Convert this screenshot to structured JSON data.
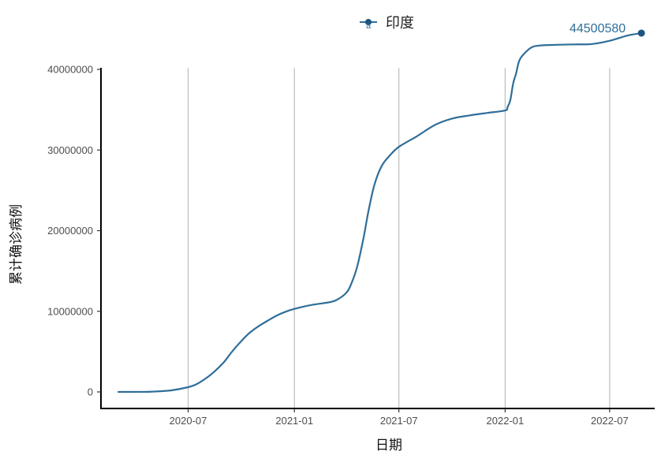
{
  "legend": {
    "series_name": "印度",
    "key_letter": "a"
  },
  "colors": {
    "series": "#2f6e99",
    "marker": "#1b5680",
    "grid": "#bdbdbd",
    "axis": "#000000"
  },
  "chart_data": {
    "type": "line",
    "xlabel": "日期",
    "ylabel": "累计确诊病例",
    "x_ticks": [
      "2020-07",
      "2021-01",
      "2021-07",
      "2022-01",
      "2022-07"
    ],
    "y_ticks": [
      "0",
      "10000000",
      "20000000",
      "30000000",
      "40000000"
    ],
    "ylim": [
      0,
      45000000
    ],
    "xlim": [
      "2020-02-01",
      "2022-09-17"
    ],
    "grid": "vertical-major",
    "legend_position": "top",
    "series": [
      {
        "name": "印度",
        "x": [
          "2020-03-01",
          "2020-04-01",
          "2020-05-01",
          "2020-06-01",
          "2020-07-01",
          "2020-07-15",
          "2020-08-01",
          "2020-08-15",
          "2020-09-01",
          "2020-09-15",
          "2020-10-01",
          "2020-10-15",
          "2020-11-01",
          "2020-11-15",
          "2020-12-01",
          "2020-12-15",
          "2021-01-01",
          "2021-02-01",
          "2021-03-01",
          "2021-03-15",
          "2021-04-01",
          "2021-04-10",
          "2021-04-20",
          "2021-05-01",
          "2021-05-10",
          "2021-05-20",
          "2021-06-01",
          "2021-06-15",
          "2021-07-01",
          "2021-08-01",
          "2021-09-01",
          "2021-10-01",
          "2021-11-01",
          "2021-12-01",
          "2022-01-01",
          "2022-01-05",
          "2022-01-10",
          "2022-01-15",
          "2022-01-20",
          "2022-01-25",
          "2022-02-01",
          "2022-02-15",
          "2022-03-01",
          "2022-04-01",
          "2022-05-01",
          "2022-06-01",
          "2022-07-01",
          "2022-08-01",
          "2022-08-25"
        ],
        "values": [
          0,
          1000,
          35000,
          190000,
          585000,
          940000,
          1700000,
          2500000,
          3700000,
          5000000,
          6300000,
          7300000,
          8200000,
          8800000,
          9450000,
          9900000,
          10300000,
          10800000,
          11100000,
          11400000,
          12300000,
          13500000,
          15600000,
          19200000,
          22700000,
          25800000,
          28000000,
          29300000,
          30400000,
          31700000,
          33100000,
          33900000,
          34300000,
          34600000,
          34900000,
          35300000,
          36200000,
          38300000,
          39500000,
          41000000,
          41800000,
          42700000,
          42950000,
          43050000,
          43100000,
          43150000,
          43550000,
          44200000,
          44500580
        ]
      }
    ],
    "annotations": [
      {
        "x": "2022-08-25",
        "y": 44500580,
        "text": "44500580"
      }
    ]
  }
}
